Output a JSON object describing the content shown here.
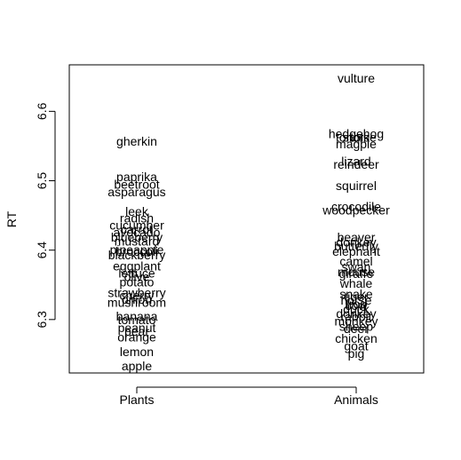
{
  "chart_data": {
    "type": "scatter",
    "title": "",
    "xlabel": "",
    "ylabel": "RT",
    "ylim": [
      6.223,
      6.667
    ],
    "y_ticks": [
      6.3,
      6.4,
      6.5,
      6.6
    ],
    "y_tick_labels": [
      "6.3",
      "6.4",
      "6.5",
      "6.6"
    ],
    "categories": [
      "Plants",
      "Animals"
    ],
    "grid": false,
    "legend": "none",
    "points": [
      {
        "category": "Plants",
        "label": "gherkin",
        "y": 6.557
      },
      {
        "category": "Plants",
        "label": "paprika",
        "y": 6.506
      },
      {
        "category": "Plants",
        "label": "beetroot",
        "y": 6.495
      },
      {
        "category": "Plants",
        "label": "asparagus",
        "y": 6.484
      },
      {
        "category": "Plants",
        "label": "leek",
        "y": 6.456
      },
      {
        "category": "Plants",
        "label": "radish",
        "y": 6.446
      },
      {
        "category": "Plants",
        "label": "cucumber",
        "y": 6.436
      },
      {
        "category": "Plants",
        "label": "carrot",
        "y": 6.43
      },
      {
        "category": "Plants",
        "label": "avocado",
        "y": 6.426
      },
      {
        "category": "Plants",
        "label": "blueberry",
        "y": 6.419
      },
      {
        "category": "Plants",
        "label": "mustard",
        "y": 6.413
      },
      {
        "category": "Plants",
        "label": "pineapple",
        "y": 6.401
      },
      {
        "category": "Plants",
        "label": "broccoli",
        "y": 6.398
      },
      {
        "category": "Plants",
        "label": "blackberry",
        "y": 6.393
      },
      {
        "category": "Plants",
        "label": "eggplant",
        "y": 6.377
      },
      {
        "category": "Plants",
        "label": "lettuce",
        "y": 6.367
      },
      {
        "category": "Plants",
        "label": "olive",
        "y": 6.362
      },
      {
        "category": "Plants",
        "label": "potato",
        "y": 6.354
      },
      {
        "category": "Plants",
        "label": "strawberry",
        "y": 6.339
      },
      {
        "category": "Plants",
        "label": "cherry",
        "y": 6.335
      },
      {
        "category": "Plants",
        "label": "onion",
        "y": 6.329
      },
      {
        "category": "Plants",
        "label": "mushroom",
        "y": 6.325
      },
      {
        "category": "Plants",
        "label": "banana",
        "y": 6.305
      },
      {
        "category": "Plants",
        "label": "tomato",
        "y": 6.3
      },
      {
        "category": "Plants",
        "label": "peanut",
        "y": 6.288
      },
      {
        "category": "Plants",
        "label": "pear",
        "y": 6.283
      },
      {
        "category": "Plants",
        "label": "orange",
        "y": 6.275
      },
      {
        "category": "Plants",
        "label": "lemon",
        "y": 6.254
      },
      {
        "category": "Plants",
        "label": "apple",
        "y": 6.233
      },
      {
        "category": "Animals",
        "label": "vulture",
        "y": 6.648
      },
      {
        "category": "Animals",
        "label": "hedgehog",
        "y": 6.568
      },
      {
        "category": "Animals",
        "label": "tortoise",
        "y": 6.563
      },
      {
        "category": "Animals",
        "label": "stork",
        "y": 6.563
      },
      {
        "category": "Animals",
        "label": "magpie",
        "y": 6.553
      },
      {
        "category": "Animals",
        "label": "lizard",
        "y": 6.528
      },
      {
        "category": "Animals",
        "label": "reindeer",
        "y": 6.524
      },
      {
        "category": "Animals",
        "label": "squirrel",
        "y": 6.493
      },
      {
        "category": "Animals",
        "label": "crocodile",
        "y": 6.463
      },
      {
        "category": "Animals",
        "label": "woodpecker",
        "y": 6.458
      },
      {
        "category": "Animals",
        "label": "beaver",
        "y": 6.419
      },
      {
        "category": "Animals",
        "label": "donkey",
        "y": 6.412
      },
      {
        "category": "Animals",
        "label": "butterfly",
        "y": 6.406
      },
      {
        "category": "Animals",
        "label": "elephant",
        "y": 6.398
      },
      {
        "category": "Animals",
        "label": "camel",
        "y": 6.384
      },
      {
        "category": "Animals",
        "label": "swan",
        "y": 6.376
      },
      {
        "category": "Animals",
        "label": "mouse",
        "y": 6.369
      },
      {
        "category": "Animals",
        "label": "giraffe",
        "y": 6.366
      },
      {
        "category": "Animals",
        "label": "whale",
        "y": 6.352
      },
      {
        "category": "Animals",
        "label": "snake",
        "y": 6.337
      },
      {
        "category": "Animals",
        "label": "tiger",
        "y": 6.333
      },
      {
        "category": "Animals",
        "label": "horse",
        "y": 6.328
      },
      {
        "category": "Animals",
        "label": "frog",
        "y": 6.323
      },
      {
        "category": "Animals",
        "label": "cow",
        "y": 6.32
      },
      {
        "category": "Animals",
        "label": "duck",
        "y": 6.315
      },
      {
        "category": "Animals",
        "label": "donkey",
        "y": 6.309
      },
      {
        "category": "Animals",
        "label": "rabbit",
        "y": 6.304
      },
      {
        "category": "Animals",
        "label": "monkey",
        "y": 6.298
      },
      {
        "category": "Animals",
        "label": "sheep",
        "y": 6.29
      },
      {
        "category": "Animals",
        "label": "deer",
        "y": 6.287
      },
      {
        "category": "Animals",
        "label": "chicken",
        "y": 6.273
      },
      {
        "category": "Animals",
        "label": "goat",
        "y": 6.262
      },
      {
        "category": "Animals",
        "label": "pig",
        "y": 6.251
      }
    ]
  }
}
